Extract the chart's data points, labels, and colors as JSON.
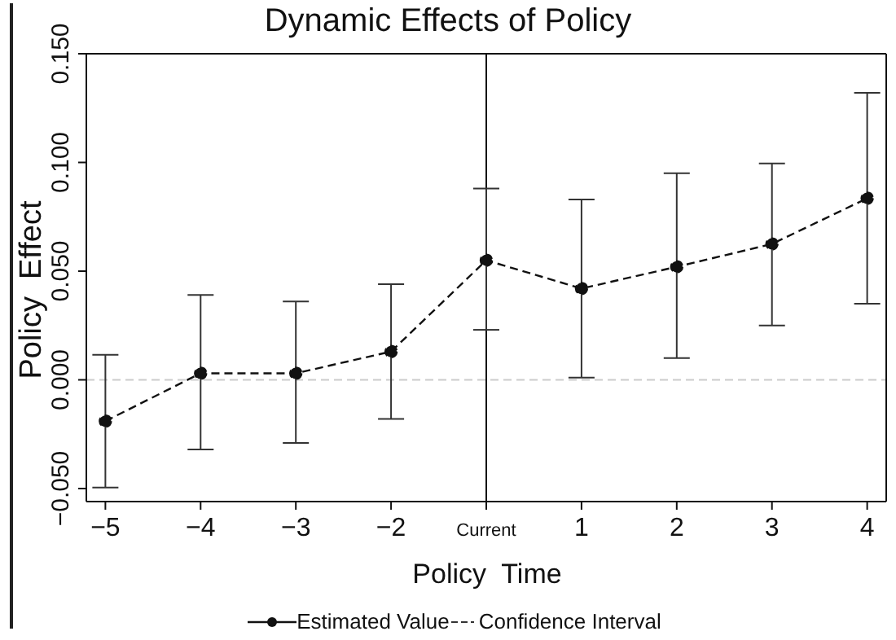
{
  "chart_data": {
    "type": "line",
    "title": "Dynamic Effects of Policy",
    "xlabel": "Policy  Time",
    "ylabel": "Policy  Effect",
    "categories": [
      "−5",
      "−4",
      "−3",
      "−2",
      "Current",
      "1",
      "2",
      "3",
      "4"
    ],
    "series": [
      {
        "name": "Estimated Value",
        "color": "#111111",
        "values": [
          -0.019,
          0.003,
          0.003,
          0.013,
          0.055,
          0.042,
          0.052,
          0.0625,
          0.0835
        ],
        "errors": [
          [
            -0.0495,
            0.0115
          ],
          [
            -0.032,
            0.039
          ],
          [
            -0.029,
            0.036
          ],
          [
            -0.018,
            0.044
          ],
          [
            0.023,
            0.088
          ],
          [
            0.001,
            0.083
          ],
          [
            0.01,
            0.095
          ],
          [
            0.025,
            0.0995
          ],
          [
            0.035,
            0.132
          ]
        ]
      }
    ],
    "annotations": [
      "Confidence Interval"
    ],
    "ylim": [
      -0.056,
      0.15
    ],
    "yticks": [
      {
        "value": -0.05,
        "label": "−0.050"
      },
      {
        "value": 0,
        "label": "0.000"
      },
      {
        "value": 0.05,
        "label": "0.050"
      },
      {
        "value": 0.1,
        "label": "0.100"
      },
      {
        "value": 0.15,
        "label": "0.150"
      }
    ],
    "ref_lines": [
      {
        "axis": "x",
        "value": "Current",
        "color": "#111111",
        "line_style": "solid"
      },
      {
        "axis": "y",
        "value": 0,
        "color": "#cccccc",
        "line_style": "dashed"
      }
    ],
    "marker": "circle",
    "line_style": "dashed",
    "legend": "bottom",
    "grid": false
  }
}
